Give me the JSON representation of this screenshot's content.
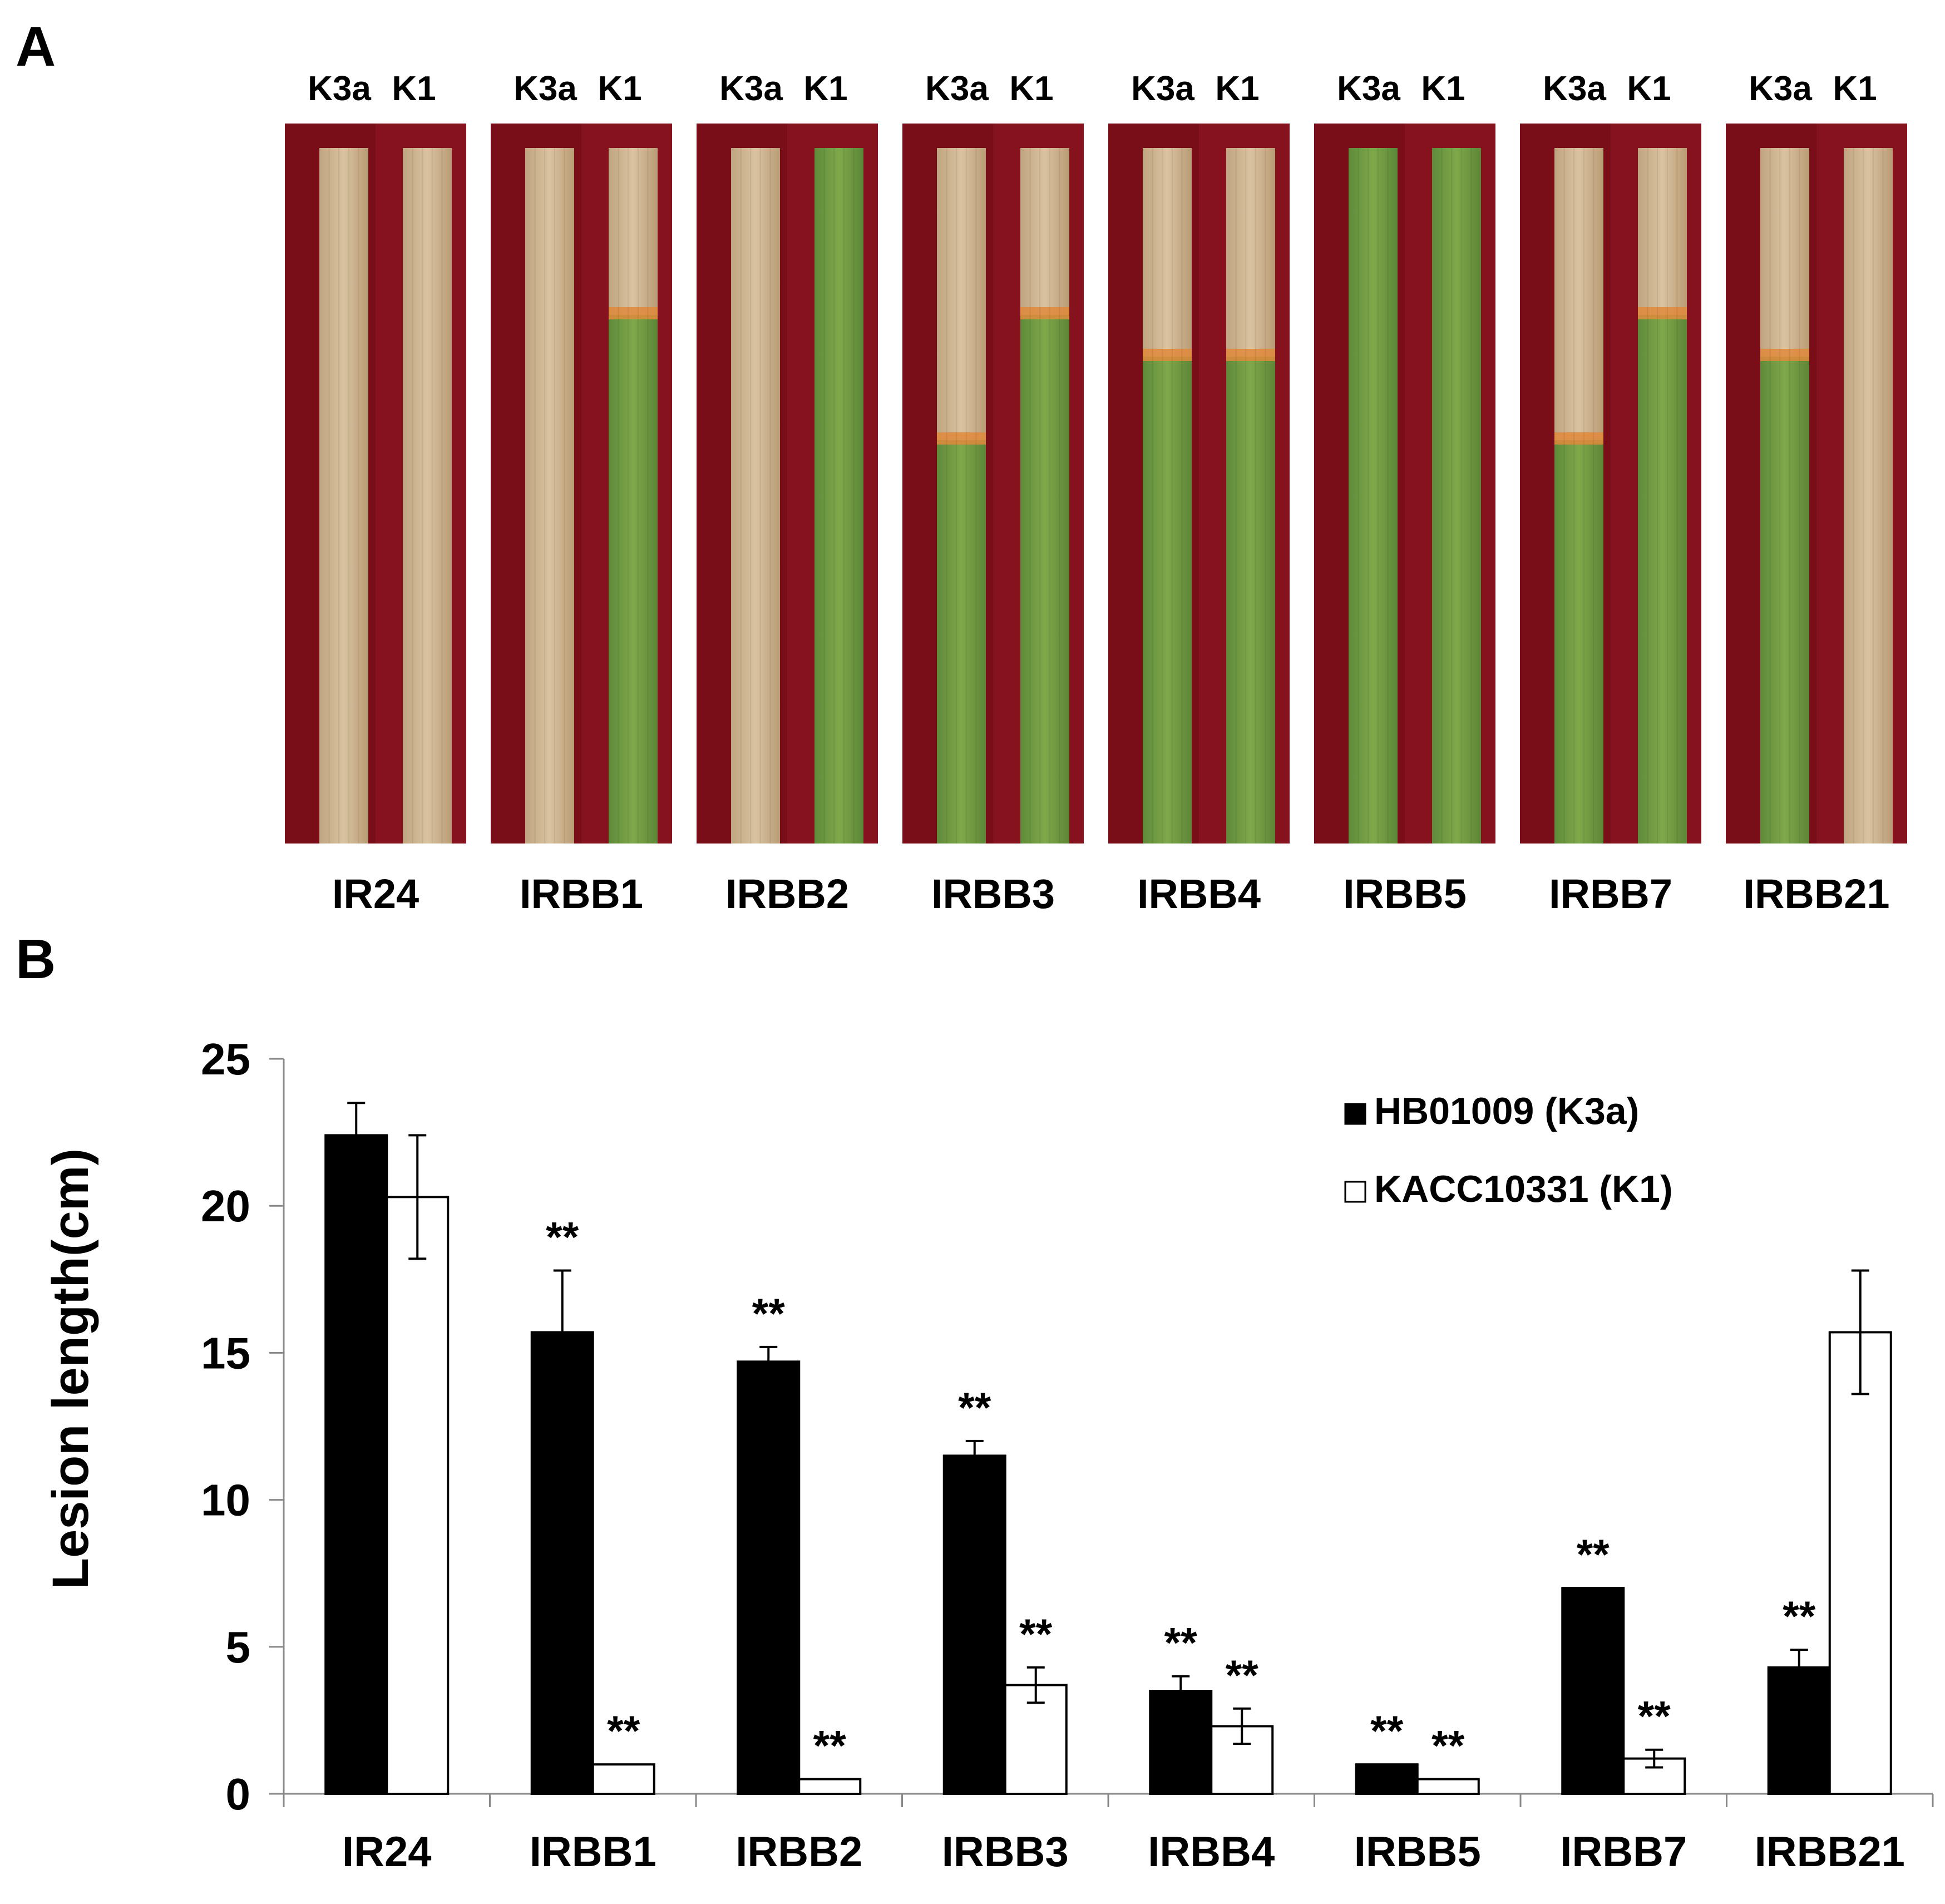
{
  "panel_a": {
    "label": "A",
    "strain_labels": [
      "K3a",
      "K1"
    ],
    "varieties": [
      {
        "name": "IR24",
        "k3a": "diseased",
        "k1": "diseased"
      },
      {
        "name": "IRBB1",
        "k3a": "diseased",
        "k1": "mostly-healthy"
      },
      {
        "name": "IRBB2",
        "k3a": "diseased",
        "k1": "healthy"
      },
      {
        "name": "IRBB3",
        "k3a": "partly-diseased",
        "k1": "mostly-healthy"
      },
      {
        "name": "IRBB4",
        "k3a": "slightly-diseased",
        "k1": "slightly-diseased"
      },
      {
        "name": "IRBB5",
        "k3a": "healthy",
        "k1": "healthy"
      },
      {
        "name": "IRBB7",
        "k3a": "partly-diseased",
        "k1": "mostly-healthy"
      },
      {
        "name": "IRBB21",
        "k3a": "slightly-diseased",
        "k1": "diseased"
      }
    ],
    "colors": {
      "background": "#7a0e18",
      "healthy_leaf": "#7fa84a",
      "diseased_leaf": "#d9c3a0",
      "lesion_edge": "#e08a3c"
    }
  },
  "panel_b": {
    "label": "B"
  },
  "chart_data": {
    "type": "bar",
    "title": "",
    "xlabel": "",
    "ylabel": "Lesion length(cm)",
    "ylim": [
      0,
      25
    ],
    "yticks": [
      0,
      5,
      10,
      15,
      20,
      25
    ],
    "categories": [
      "IR24",
      "IRBB1",
      "IRBB2",
      "IRBB3",
      "IRBB4",
      "IRBB5",
      "IRBB7",
      "IRBB21"
    ],
    "series": [
      {
        "name": "HB01009 (K3a)",
        "fill": "#000000",
        "values": [
          22.4,
          15.7,
          14.7,
          11.5,
          3.5,
          1.0,
          7.0,
          4.3
        ],
        "errors": [
          1.1,
          2.1,
          0.5,
          0.5,
          0.5,
          0.0,
          0.0,
          0.6
        ],
        "significance": [
          "",
          "**",
          "**",
          "**",
          "**",
          "**",
          "**",
          "**"
        ]
      },
      {
        "name": "KACC10331 (K1)",
        "fill": "#ffffff",
        "values": [
          20.3,
          1.0,
          0.5,
          3.7,
          2.3,
          0.5,
          1.2,
          15.7
        ],
        "errors": [
          2.1,
          0.0,
          0.0,
          0.6,
          0.6,
          0.0,
          0.3,
          2.1
        ],
        "significance": [
          "",
          "**",
          "**",
          "**",
          "**",
          "**",
          "**",
          ""
        ]
      }
    ],
    "legend_position": "top-right"
  }
}
